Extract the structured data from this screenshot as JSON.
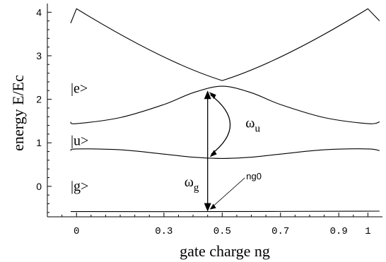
{
  "chart_data": {
    "type": "line",
    "xlabel": "gate charge ng",
    "ylabel": "energy E/Ec",
    "xlim": [
      -0.1,
      1.05
    ],
    "ylim": [
      -0.7,
      4.2
    ],
    "x_ticks": [
      0,
      0.3,
      0.5,
      0.7,
      0.9,
      1
    ],
    "x_tick_labels": [
      "0",
      "0.3",
      "0.5",
      "0.7",
      "0.9",
      "1"
    ],
    "y_ticks": [
      0,
      1,
      2,
      3,
      4
    ],
    "y_tick_labels": [
      "0",
      "1",
      "2",
      "3",
      "4"
    ],
    "series": [
      {
        "x": [
          -0.02,
          0.0,
          0.25,
          0.45,
          0.5,
          0.55,
          0.75,
          1.0,
          1.04
        ],
        "y": [
          3.75,
          4.08,
          3.1,
          2.5,
          2.43,
          2.5,
          3.1,
          4.08,
          3.8
        ]
      },
      {
        "x": [
          -0.02,
          0.0,
          0.15,
          0.3,
          0.4,
          0.5,
          0.6,
          0.7,
          0.85,
          1.0,
          1.04
        ],
        "y": [
          1.48,
          1.44,
          1.58,
          1.88,
          2.15,
          2.3,
          2.15,
          1.88,
          1.58,
          1.44,
          1.48
        ]
      },
      {
        "x": [
          -0.02,
          0.0,
          0.15,
          0.3,
          0.4,
          0.5,
          0.6,
          0.7,
          0.85,
          1.0,
          1.04
        ],
        "y": [
          0.82,
          0.86,
          0.84,
          0.74,
          0.67,
          0.64,
          0.67,
          0.74,
          0.84,
          0.86,
          0.82
        ]
      },
      {
        "x": [
          -0.02,
          0.45,
          1.04
        ],
        "y": [
          -0.58,
          -0.58,
          -0.57
        ]
      }
    ],
    "annotations": [
      {
        "text": "|e>",
        "x": -0.02,
        "y": 2.15
      },
      {
        "text": "|u>",
        "x": -0.02,
        "y": 0.95
      },
      {
        "text": "|g>",
        "x": -0.02,
        "y": -0.1
      },
      {
        "text": "ω",
        "sub": "u",
        "x": 0.58,
        "y": 1.35
      },
      {
        "text": "ω",
        "sub": "g",
        "x": 0.37,
        "y": 0.0
      },
      {
        "text": "ng0",
        "x": 0.5,
        "y": 0.0
      }
    ],
    "transitions": [
      {
        "x": 0.45,
        "y_from": -0.58,
        "y_to": 2.2,
        "double_headed": true
      },
      {
        "from": [
          0.45,
          2.2
        ],
        "to": [
          0.45,
          0.64
        ],
        "curved": true,
        "double_headed": true
      }
    ]
  }
}
